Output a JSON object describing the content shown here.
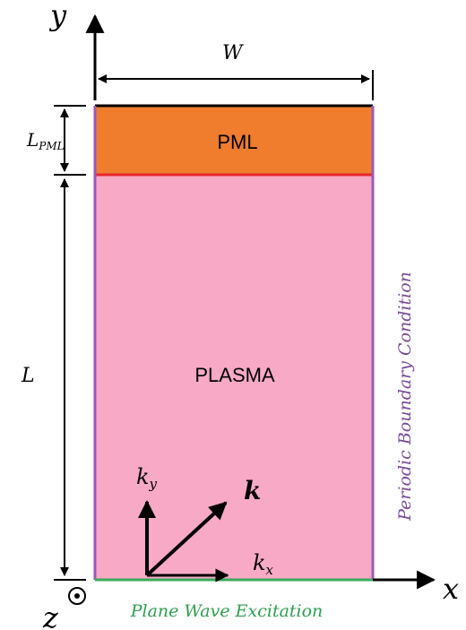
{
  "axes": {
    "y_label": "y",
    "x_label": "x",
    "z_label": "z"
  },
  "dimensions": {
    "width_label": "W",
    "pml_thickness_label_main": "L",
    "pml_thickness_label_sub": "PML",
    "length_label": "L"
  },
  "regions": {
    "pml_label": "PML",
    "plasma_label": "PLASMA"
  },
  "wave_vector": {
    "k_label": "k",
    "ky_main": "k",
    "ky_sub": "y",
    "kx_main": "k",
    "kx_sub": "x"
  },
  "boundaries": {
    "side_label": "Periodic Boundary Condition",
    "bottom_label": "Plane Wave Excitation"
  },
  "colors": {
    "pml_fill": "#f07d2d",
    "plasma_fill": "#f8a9c6",
    "pml_interface": "#e8262c",
    "side_boundary": "#9b59b6",
    "bottom_boundary": "#3aaa5a",
    "side_label_color": "#7a4a9a",
    "bottom_label_color": "#2e9e4e",
    "ink": "#000000"
  }
}
